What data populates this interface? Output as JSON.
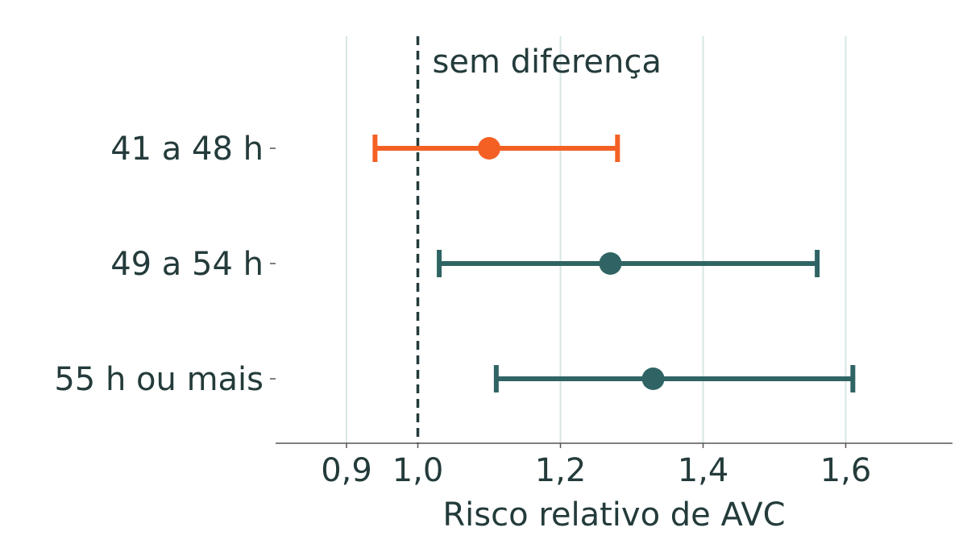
{
  "chart_data": {
    "type": "forest",
    "title": "",
    "xlabel": "Risco relativo de AVC",
    "ylabel": "",
    "xlim": [
      0.9,
      1.75
    ],
    "x_ticks": [
      0.9,
      1.0,
      1.2,
      1.4,
      1.6
    ],
    "x_tick_labels": [
      "0,9",
      "1,0",
      "1,2",
      "1,4",
      "1,6"
    ],
    "grid": "vertical",
    "reference_line": {
      "x": 1.0,
      "label": "sem diferença"
    },
    "rows": [
      {
        "label": "41 a 48 h",
        "estimate": 1.1,
        "low": 0.94,
        "high": 1.28,
        "color": "#f46024"
      },
      {
        "label": "49 a 54 h",
        "estimate": 1.27,
        "low": 1.03,
        "high": 1.56,
        "color": "#306464"
      },
      {
        "label": "55 h ou mais",
        "estimate": 1.33,
        "low": 1.11,
        "high": 1.61,
        "color": "#306464"
      }
    ],
    "colors": {
      "text": "#243b3b",
      "grid": "#d6e6e4",
      "axis": "#555555",
      "reference": "#243b3b"
    }
  }
}
